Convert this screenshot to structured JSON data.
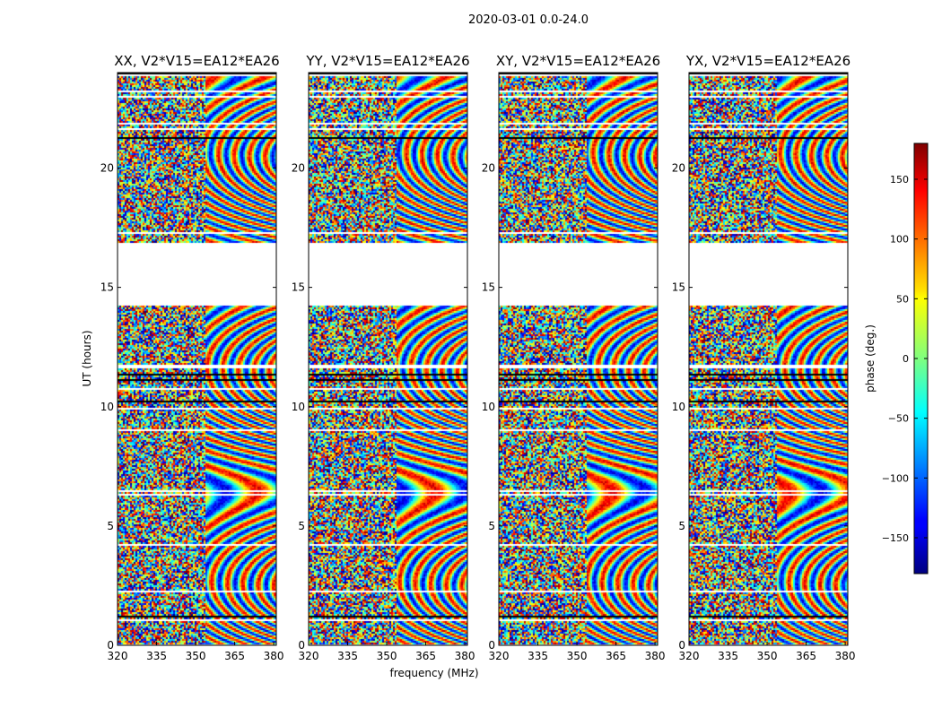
{
  "suptitle": "2020-03-01 0.0-24.0",
  "chart_data": {
    "type": "heatmap",
    "title": "2020-03-01 0.0-24.0",
    "xlabel": "frequency (MHz)",
    "ylabel": "UT (hours)",
    "xlim": [
      320,
      381
    ],
    "ylim": [
      0,
      24
    ],
    "x_ticks": [
      320,
      335,
      350,
      365,
      380
    ],
    "y_ticks": [
      0,
      5,
      10,
      15,
      20
    ],
    "panels": [
      {
        "name": "XX",
        "title": "XX, V2*V15=EA12*EA26"
      },
      {
        "name": "YY",
        "title": "YY, V2*V15=EA12*EA26"
      },
      {
        "name": "XY",
        "title": "XY, V2*V15=EA12*EA26"
      },
      {
        "name": "YX",
        "title": "YX, V2*V15=EA12*EA26"
      }
    ],
    "data_gaps_ut_hours": [
      [
        14.2,
        16.8
      ]
    ],
    "colorbar": {
      "label": "phase (deg.)",
      "range": [
        -180,
        180
      ],
      "ticks": [
        -150,
        -100,
        -50,
        0,
        50,
        100,
        150
      ],
      "colormap": "jet"
    }
  }
}
